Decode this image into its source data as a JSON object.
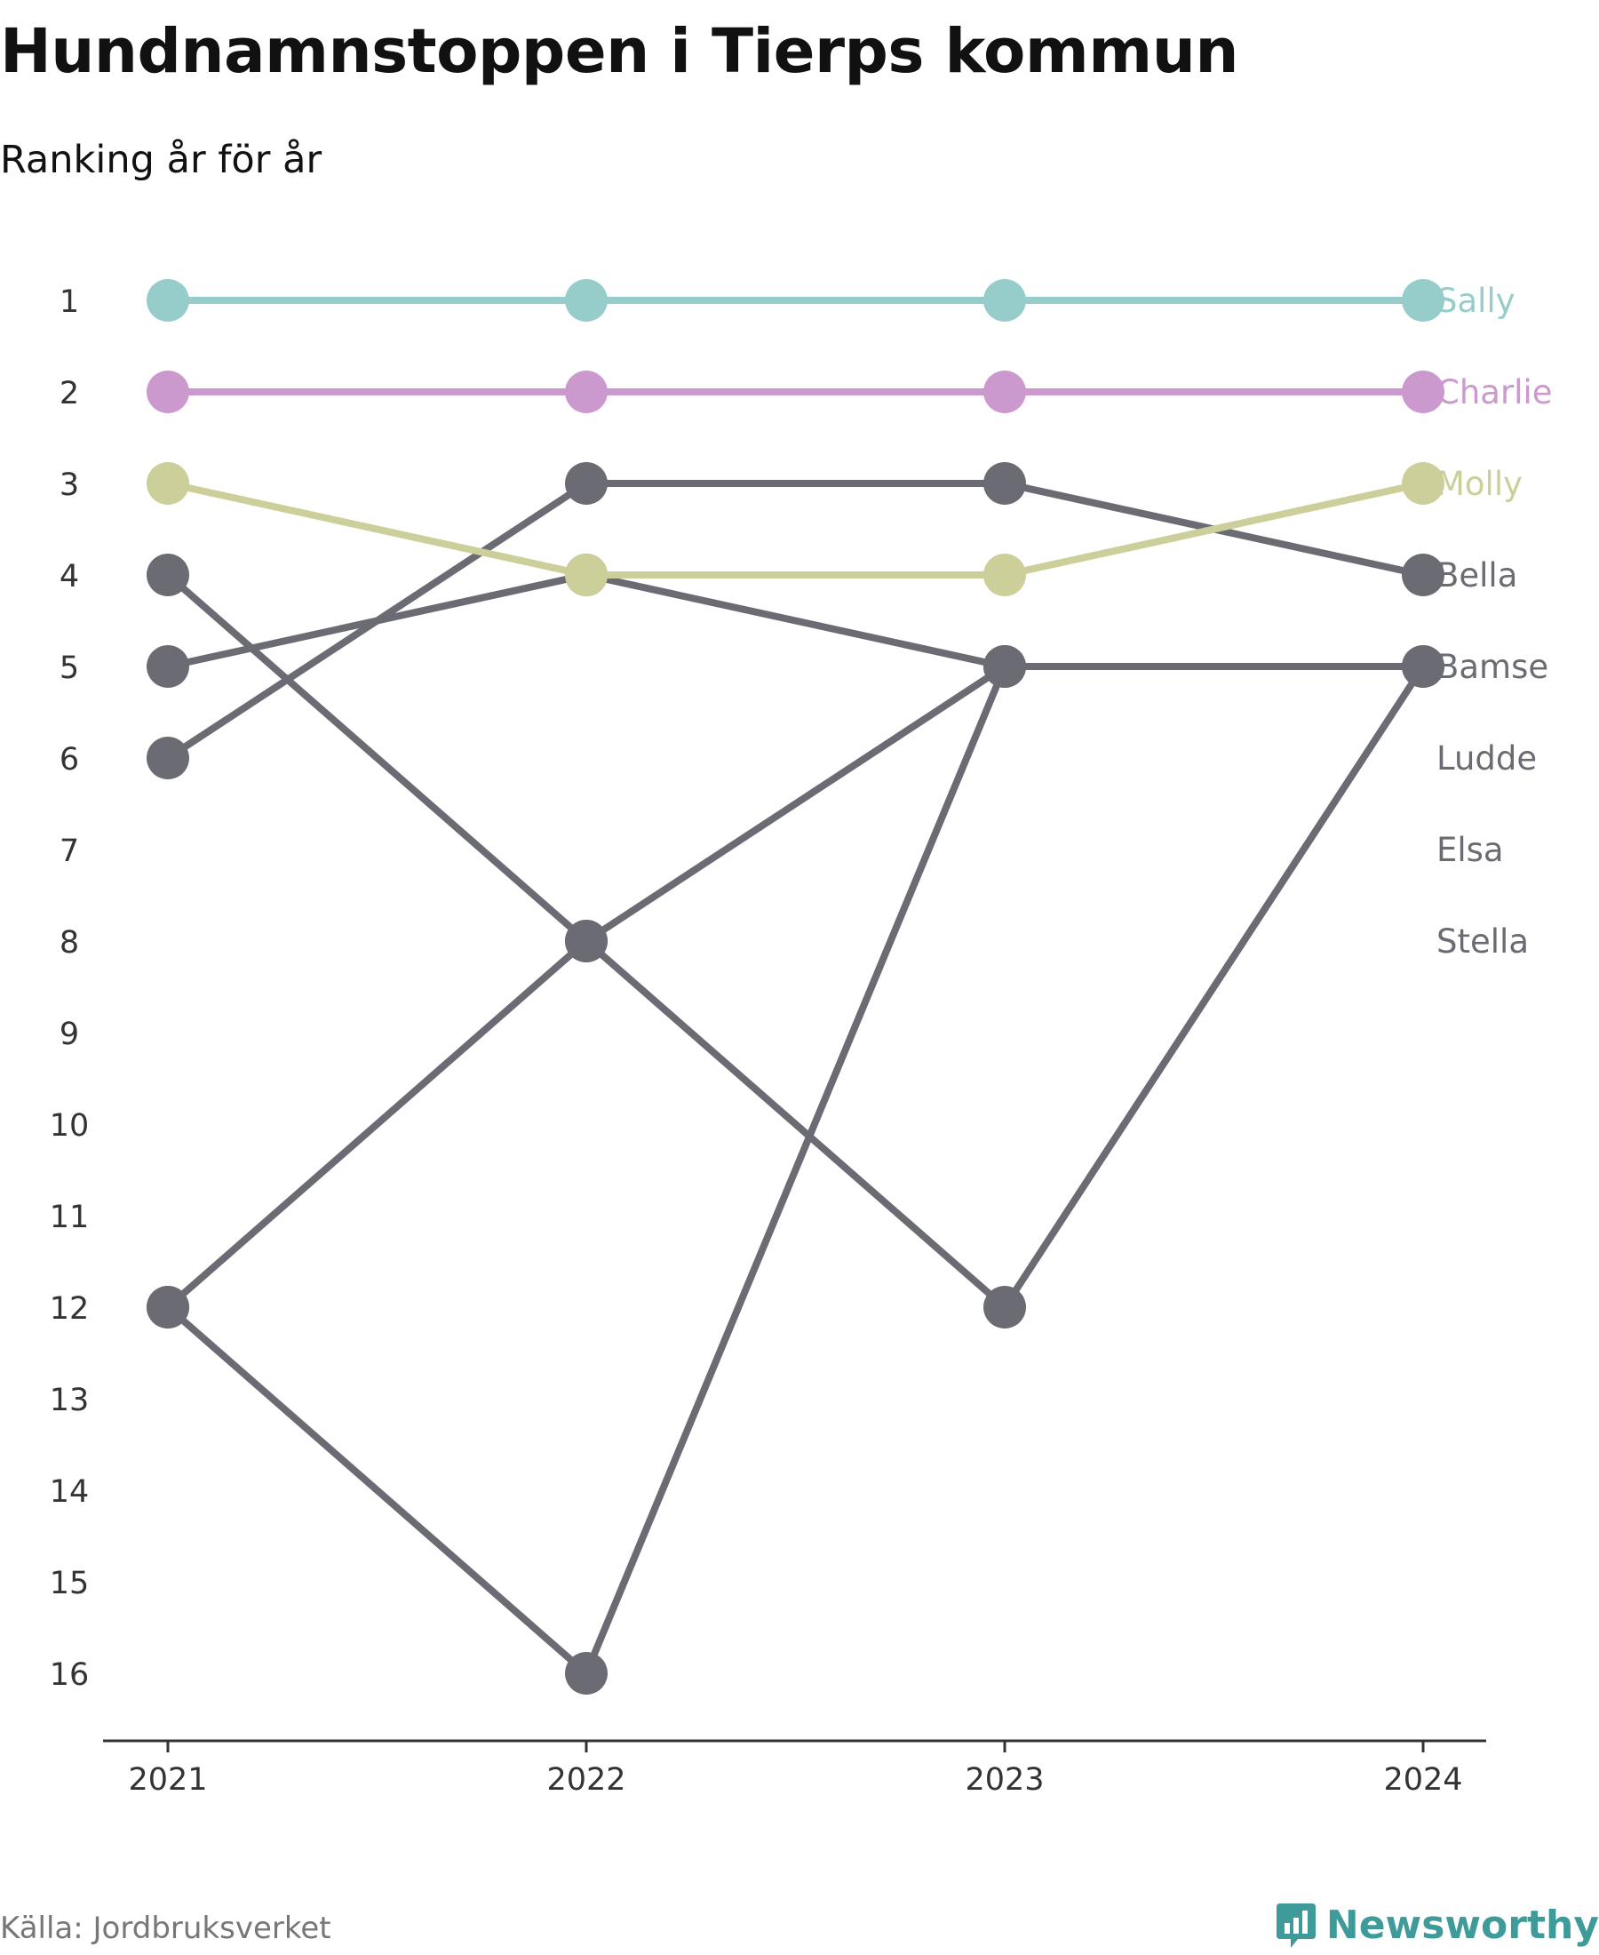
{
  "title": "Hundnamnstoppen i Tierps kommun",
  "subtitle": "Ranking år för år",
  "source": "Källa: Jordbruksverket",
  "brand": "Newsworthy",
  "chart_data": {
    "type": "line",
    "title": "Hundnamnstoppen i Tierps kommun",
    "subtitle": "Ranking år för år",
    "x": [
      "2021",
      "2022",
      "2023",
      "2024"
    ],
    "y_ticks": [
      1,
      2,
      3,
      4,
      5,
      6,
      7,
      8,
      9,
      10,
      11,
      12,
      13,
      14,
      15,
      16
    ],
    "ylim": [
      1,
      16
    ],
    "y_reversed": true,
    "grid": false,
    "series": [
      {
        "name": "Sally",
        "color": "#96cdcb",
        "values": [
          1,
          1,
          1,
          1
        ]
      },
      {
        "name": "Charlie",
        "color": "#cc99cf",
        "values": [
          2,
          2,
          2,
          2
        ]
      },
      {
        "name": "Molly",
        "color": "#cccf9a",
        "values": [
          3,
          4,
          4,
          3
        ]
      },
      {
        "name": "Bella",
        "color": "#6b6b73",
        "values": [
          6,
          3,
          3,
          4
        ]
      },
      {
        "name": "Bamse",
        "color": "#6b6b73",
        "values": [
          12,
          16,
          5,
          5
        ]
      },
      {
        "name": "Ludde",
        "color": "#6b6b73",
        "values": [
          5,
          4,
          5,
          null
        ]
      },
      {
        "name": "Elsa",
        "color": "#6b6b73",
        "values": [
          4,
          8,
          12,
          5
        ]
      },
      {
        "name": "Stella",
        "color": "#6b6b73",
        "values": [
          12,
          8,
          5,
          null
        ]
      }
    ]
  }
}
